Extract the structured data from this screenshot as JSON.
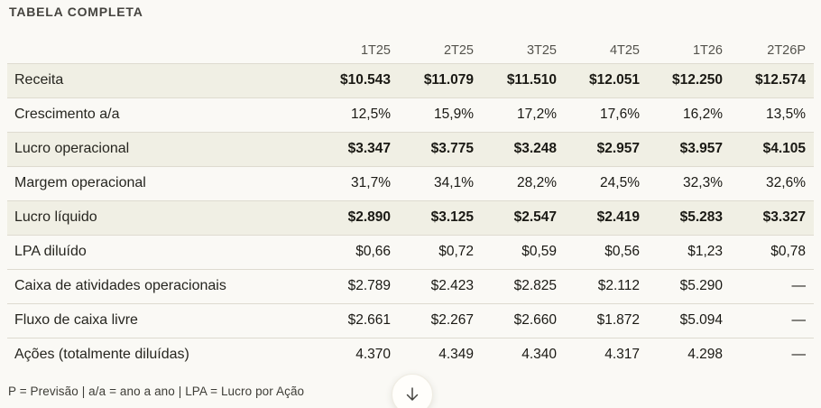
{
  "header": {
    "title": "TABELA COMPLETA"
  },
  "chart_data": {
    "type": "table",
    "title": "TABELA COMPLETA",
    "column_headers": [
      "1T25",
      "2T25",
      "3T25",
      "4T25",
      "1T26",
      "2T26P"
    ],
    "rows": [
      {
        "label": "Receita",
        "values": [
          "$10.543",
          "$11.079",
          "$11.510",
          "$12.051",
          "$12.250",
          "$12.574"
        ],
        "emphasis": true
      },
      {
        "label": "Crescimento a/a",
        "values": [
          "12,5%",
          "15,9%",
          "17,2%",
          "17,6%",
          "16,2%",
          "13,5%"
        ],
        "emphasis": false
      },
      {
        "label": "Lucro operacional",
        "values": [
          "$3.347",
          "$3.775",
          "$3.248",
          "$2.957",
          "$3.957",
          "$4.105"
        ],
        "emphasis": true
      },
      {
        "label": "Margem operacional",
        "values": [
          "31,7%",
          "34,1%",
          "28,2%",
          "24,5%",
          "32,3%",
          "32,6%"
        ],
        "emphasis": false
      },
      {
        "label": "Lucro líquido",
        "values": [
          "$2.890",
          "$3.125",
          "$2.547",
          "$2.419",
          "$5.283",
          "$3.327"
        ],
        "emphasis": true
      },
      {
        "label": "LPA diluído",
        "values": [
          "$0,66",
          "$0,72",
          "$0,59",
          "$0,56",
          "$1,23",
          "$0,78"
        ],
        "emphasis": false
      },
      {
        "label": "Caixa de atividades operacionais",
        "values": [
          "$2.789",
          "$2.423",
          "$2.825",
          "$2.112",
          "$5.290",
          "—"
        ],
        "emphasis": false
      },
      {
        "label": "Fluxo de caixa livre",
        "values": [
          "$2.661",
          "$2.267",
          "$2.660",
          "$1.872",
          "$5.094",
          "—"
        ],
        "emphasis": false
      },
      {
        "label": "Ações (totalmente diluídas)",
        "values": [
          "4.370",
          "4.349",
          "4.340",
          "4.317",
          "4.298",
          "—"
        ],
        "emphasis": false
      }
    ]
  },
  "footer": {
    "note": "P = Previsão | a/a = ano a ano | LPA = Lucro por Ação"
  },
  "scroll_button": {
    "icon": "down-arrow"
  },
  "colors": {
    "background": "#faf9f5",
    "row_highlight": "#f0efe4",
    "divider": "#dedbd0",
    "text_primary": "#1a1914",
    "text_label": "#26251f",
    "text_secondary": "#54534d",
    "button_background": "#fffefb"
  }
}
